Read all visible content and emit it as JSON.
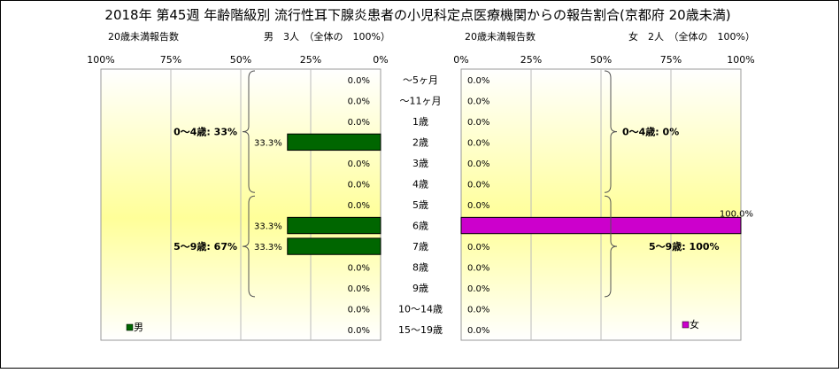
{
  "chart_data": {
    "type": "bar",
    "orientation": "horizontal",
    "layout": "population-pyramid",
    "title": "2018年 第45週 年齢階級別 流行性耳下腺炎患者の小児科定点医療機関からの報告割合(京都府 20歳未満)",
    "categories": [
      "～5ヶ月",
      "～11ヶ月",
      "1歳",
      "2歳",
      "3歳",
      "4歳",
      "5歳",
      "6歳",
      "7歳",
      "8歳",
      "9歳",
      "10～14歳",
      "15～19歳"
    ],
    "left": {
      "axis_caption": "20歳未満報告数",
      "summary": "男　3人　（全体の　100%）",
      "legend": "男",
      "color": "#006600",
      "axis_ticks": [
        "100%",
        "75%",
        "50%",
        "25%",
        "0%"
      ],
      "xlim": [
        0,
        100
      ],
      "values": [
        0,
        0,
        0,
        33.3,
        0,
        0,
        0,
        33.3,
        33.3,
        0,
        0,
        0,
        0
      ],
      "data_labels": [
        "0.0%",
        "0.0%",
        "0.0%",
        "33.3%",
        "0.0%",
        "0.0%",
        "0.0%",
        "33.3%",
        "33.3%",
        "0.0%",
        "0.0%",
        "0.0%",
        "0.0%"
      ],
      "brackets": [
        {
          "label": "0～4歳: 33%",
          "from": 0,
          "to": 5
        },
        {
          "label": "5～9歳: 67%",
          "from": 6,
          "to": 10
        }
      ]
    },
    "right": {
      "axis_caption": "20歳未満報告数",
      "summary": "女　2人　（全体の　100%）",
      "legend": "女",
      "color": "#cc00cc",
      "axis_ticks": [
        "0%",
        "25%",
        "50%",
        "75%",
        "100%"
      ],
      "xlim": [
        0,
        100
      ],
      "values": [
        0,
        0,
        0,
        0,
        0,
        0,
        0,
        100,
        0,
        0,
        0,
        0,
        0
      ],
      "data_labels": [
        "0.0%",
        "0.0%",
        "0.0%",
        "0.0%",
        "0.0%",
        "0.0%",
        "0.0%",
        "100.0%",
        "0.0%",
        "0.0%",
        "0.0%",
        "0.0%",
        "0.0%"
      ],
      "brackets": [
        {
          "label": "0～4歳: 0%",
          "from": 0,
          "to": 5
        },
        {
          "label": "5～9歳: 100%",
          "from": 6,
          "to": 10
        }
      ]
    },
    "grid": true,
    "legend_position": "bottom-left / bottom-right"
  }
}
